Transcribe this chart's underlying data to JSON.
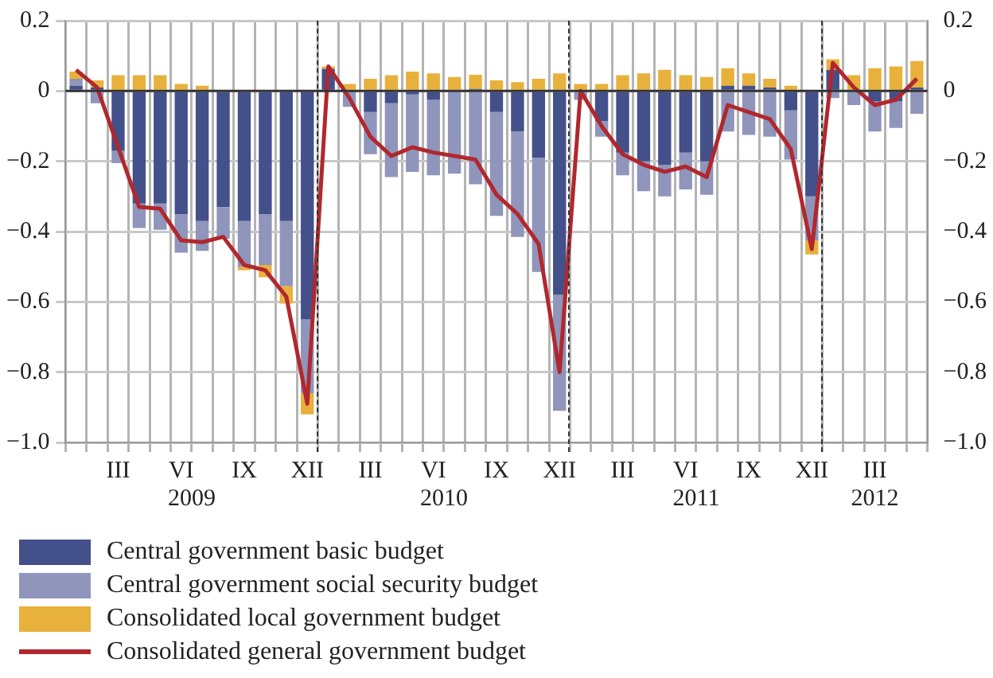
{
  "chart_data": {
    "type": "bar",
    "stacked": true,
    "categories": [
      null,
      null,
      "III",
      null,
      null,
      "VI",
      null,
      null,
      "IX",
      null,
      null,
      "XII",
      null,
      null,
      "III",
      null,
      null,
      "VI",
      null,
      null,
      "IX",
      null,
      null,
      "XII",
      null,
      null,
      "III",
      null,
      null,
      "VI",
      null,
      null,
      "IX",
      null,
      null,
      "XII",
      null,
      null,
      "III",
      null,
      null
    ],
    "ylim": [
      -1.0,
      0.2
    ],
    "yticks": [
      {
        "value": 0.2,
        "label": "0.2"
      },
      {
        "value": 0,
        "label": "0"
      },
      {
        "value": -0.2,
        "label": "−0.2"
      },
      {
        "value": -0.4,
        "label": "−0.4"
      },
      {
        "value": -0.6,
        "label": "−0.6"
      },
      {
        "value": -0.8,
        "label": "−0.8"
      },
      {
        "value": -1.0,
        "label": "−1.0"
      }
    ],
    "y2lim": [
      -1.0,
      0.2
    ],
    "y2ticks": [
      {
        "value": 0.2,
        "label": "0.2"
      },
      {
        "value": 0,
        "label": "0"
      },
      {
        "value": -0.2,
        "label": "−0.2"
      },
      {
        "value": -0.4,
        "label": "−0.4"
      },
      {
        "value": -0.6,
        "label": "−0.6"
      },
      {
        "value": -0.8,
        "label": "−0.8"
      },
      {
        "value": -1.0,
        "label": "−1.0"
      }
    ],
    "grid": true,
    "legend": "bottom",
    "series": [
      {
        "name": "Central government basic budget",
        "color": "#44508a",
        "values": [
          0.015,
          0.01,
          -0.17,
          -0.32,
          -0.32,
          -0.35,
          -0.37,
          -0.33,
          -0.37,
          -0.35,
          -0.37,
          -0.65,
          0.063,
          0,
          -0.06,
          -0.035,
          -0.01,
          -0.025,
          0,
          0.006,
          -0.06,
          -0.115,
          -0.19,
          -0.58,
          0,
          -0.085,
          -0.175,
          -0.2,
          -0.21,
          -0.175,
          -0.2,
          0.015,
          0.015,
          0.01,
          -0.055,
          -0.3,
          0.06,
          0,
          -0.03,
          -0.03,
          0.01
        ]
      },
      {
        "name": "Central government social security budget",
        "color": "#8f95bb",
        "values": [
          0.02,
          -0.035,
          -0.035,
          -0.07,
          -0.075,
          -0.11,
          -0.085,
          -0.09,
          -0.13,
          -0.145,
          -0.185,
          -0.21,
          0,
          -0.045,
          -0.12,
          -0.21,
          -0.22,
          -0.215,
          -0.235,
          -0.265,
          -0.295,
          -0.3,
          -0.325,
          -0.33,
          -0.025,
          -0.045,
          -0.065,
          -0.085,
          -0.09,
          -0.105,
          -0.095,
          -0.115,
          -0.125,
          -0.13,
          -0.14,
          -0.125,
          -0.02,
          -0.04,
          -0.085,
          -0.075,
          -0.065
        ]
      },
      {
        "name": "Consolidated local government budget",
        "color": "#e8b13c",
        "values": [
          0.02,
          0.02,
          0.045,
          0.045,
          0.045,
          0.02,
          0.015,
          0,
          -0.01,
          -0.035,
          -0.05,
          -0.06,
          0.007,
          0.02,
          0.035,
          0.045,
          0.055,
          0.05,
          0.04,
          0.04,
          0.03,
          0.025,
          0.035,
          0.05,
          0.02,
          0.02,
          0.045,
          0.05,
          0.06,
          0.045,
          0.04,
          0.05,
          0.035,
          0.025,
          0.015,
          -0.04,
          0.03,
          0.045,
          0.065,
          0.07,
          0.075
        ]
      },
      {
        "name": "Consolidated general government budget",
        "type": "line",
        "color": "#b0282e",
        "values": [
          0.06,
          0.01,
          -0.16,
          -0.33,
          -0.335,
          -0.425,
          -0.43,
          -0.415,
          -0.495,
          -0.51,
          -0.585,
          -0.89,
          0.07,
          -0.02,
          -0.13,
          -0.185,
          -0.16,
          -0.175,
          -0.185,
          -0.195,
          -0.295,
          -0.35,
          -0.435,
          -0.8,
          0,
          -0.1,
          -0.18,
          -0.21,
          -0.23,
          -0.215,
          -0.245,
          -0.04,
          -0.06,
          -0.08,
          -0.165,
          -0.45,
          0.08,
          0.01,
          -0.04,
          -0.025,
          0.035
        ]
      }
    ],
    "annotations": [
      "2009",
      "2010",
      "2011",
      "2012"
    ]
  }
}
